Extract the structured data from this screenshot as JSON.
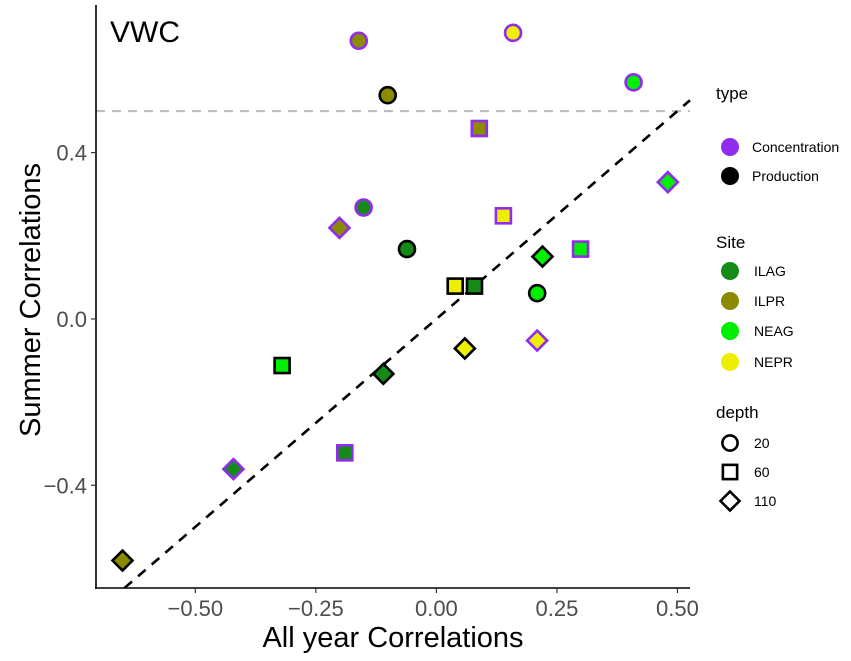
{
  "chart_data": {
    "type": "scatter",
    "title": "VWC",
    "xlabel": "All year Correlations",
    "ylabel": "Summer Correlations",
    "xlim": [
      -0.706,
      0.526
    ],
    "ylim": [
      -0.647,
      0.755
    ],
    "xticks": [
      -0.5,
      -0.25,
      0,
      0.25,
      0.5
    ],
    "xtick_labels": [
      "−0.50",
      "−0.25",
      "0.00",
      "0.25",
      "0.50"
    ],
    "yticks": [
      -0.4,
      0,
      0.4
    ],
    "ytick_labels": [
      "−0.4",
      "0.0",
      "0.4"
    ],
    "grid": false,
    "reference_lines": [
      {
        "kind": "hline",
        "y": 0.5,
        "style": "dashed",
        "color": "#bdbdbd"
      },
      {
        "kind": "abline",
        "slope": 1,
        "intercept": 0,
        "style": "dashed",
        "color": "#000000"
      }
    ],
    "legend": {
      "placement": "right",
      "type": {
        "title": "type",
        "items": [
          {
            "label": "Concentration",
            "color": "#912CEE"
          },
          {
            "label": "Production",
            "color": "#000000"
          }
        ]
      },
      "site": {
        "title": "Site",
        "items": [
          {
            "label": "ILAG",
            "color": "#168A16"
          },
          {
            "label": "ILPR",
            "color": "#8B8B00"
          },
          {
            "label": "NEAG",
            "color": "#00EE00"
          },
          {
            "label": "NEPR",
            "color": "#EEEE00"
          }
        ]
      },
      "depth": {
        "title": "depth",
        "items": [
          {
            "label": "20",
            "shape": "circle"
          },
          {
            "label": "60",
            "shape": "square"
          },
          {
            "label": "110",
            "shape": "diamond"
          }
        ]
      }
    },
    "points": [
      {
        "x": -0.161,
        "y": 0.669,
        "type": "Concentration",
        "site": "ILPR",
        "depth": 20
      },
      {
        "x": 0.159,
        "y": 0.688,
        "type": "Concentration",
        "site": "NEPR",
        "depth": 20
      },
      {
        "x": 0.409,
        "y": 0.569,
        "type": "Concentration",
        "site": "NEAG",
        "depth": 20
      },
      {
        "x": -0.101,
        "y": 0.538,
        "type": "Production",
        "site": "ILPR",
        "depth": 20
      },
      {
        "x": 0.089,
        "y": 0.458,
        "type": "Concentration",
        "site": "ILPR",
        "depth": 60
      },
      {
        "x": 0.48,
        "y": 0.329,
        "type": "Concentration",
        "site": "NEAG",
        "depth": 110
      },
      {
        "x": -0.151,
        "y": 0.268,
        "type": "Concentration",
        "site": "ILAG",
        "depth": 20
      },
      {
        "x": -0.201,
        "y": 0.219,
        "type": "Concentration",
        "site": "ILPR",
        "depth": 110
      },
      {
        "x": 0.139,
        "y": 0.248,
        "type": "Concentration",
        "site": "NEPR",
        "depth": 60
      },
      {
        "x": -0.061,
        "y": 0.168,
        "type": "Production",
        "site": "ILAG",
        "depth": 20
      },
      {
        "x": 0.22,
        "y": 0.15,
        "type": "Production",
        "site": "NEAG",
        "depth": 110
      },
      {
        "x": 0.299,
        "y": 0.168,
        "type": "Concentration",
        "site": "NEAG",
        "depth": 60
      },
      {
        "x": 0.039,
        "y": 0.079,
        "type": "Production",
        "site": "NEPR",
        "depth": 60
      },
      {
        "x": 0.079,
        "y": 0.079,
        "type": "Production",
        "site": "ILAG",
        "depth": 60
      },
      {
        "x": 0.209,
        "y": 0.062,
        "type": "Production",
        "site": "NEAG",
        "depth": 20
      },
      {
        "x": 0.059,
        "y": -0.071,
        "type": "Production",
        "site": "NEPR",
        "depth": 110
      },
      {
        "x": 0.209,
        "y": -0.052,
        "type": "Concentration",
        "site": "NEPR",
        "depth": 110
      },
      {
        "x": -0.32,
        "y": -0.112,
        "type": "Production",
        "site": "NEAG",
        "depth": 60
      },
      {
        "x": -0.11,
        "y": -0.132,
        "type": "Production",
        "site": "ILAG",
        "depth": 110
      },
      {
        "x": -0.19,
        "y": -0.322,
        "type": "Concentration",
        "site": "ILAG",
        "depth": 60
      },
      {
        "x": -0.421,
        "y": -0.361,
        "type": "Concentration",
        "site": "ILAG",
        "depth": 110
      },
      {
        "x": -0.651,
        "y": -0.581,
        "type": "Production",
        "site": "ILPR",
        "depth": 110
      }
    ]
  }
}
